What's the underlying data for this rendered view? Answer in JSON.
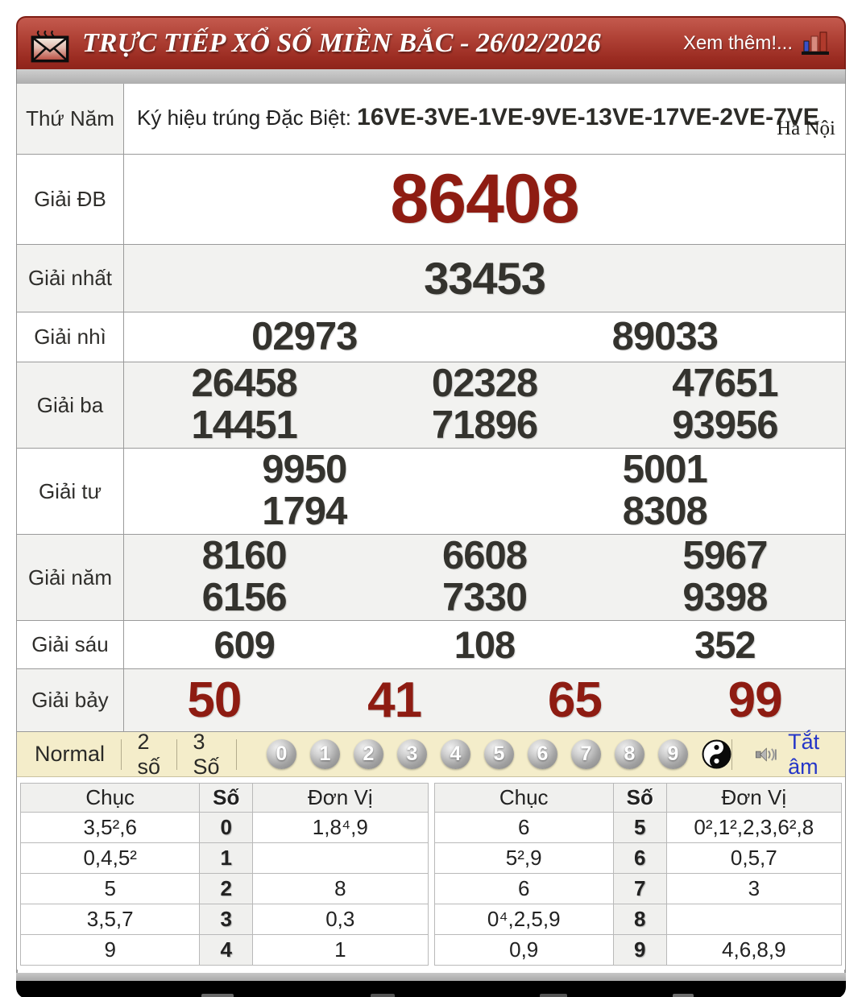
{
  "header": {
    "title": "TRỰC TIẾP XỔ SỐ MIỀN BẮC - 26/02/2026",
    "more_link": "Xem thêm!..."
  },
  "info": {
    "day": "Thứ Năm",
    "prefix": "Ký hiệu trúng Đặc Biệt: ",
    "code": "16VE-3VE-1VE-9VE-13VE-17VE-2VE-7VE",
    "region": "Hà Nội"
  },
  "prizes": {
    "rows": [
      {
        "label": "Giải ĐB",
        "style": "db",
        "shaded": false,
        "lines": [
          [
            "86408"
          ]
        ]
      },
      {
        "label": "Giải nhất",
        "style": "first",
        "shaded": true,
        "lines": [
          [
            "33453"
          ]
        ]
      },
      {
        "label": "Giải nhì",
        "style": "mid",
        "shaded": false,
        "lines": [
          [
            "02973",
            "89033"
          ]
        ]
      },
      {
        "label": "Giải ba",
        "style": "mid",
        "shaded": true,
        "lines": [
          [
            "26458",
            "02328",
            "47651"
          ],
          [
            "14451",
            "71896",
            "93956"
          ]
        ]
      },
      {
        "label": "Giải tư",
        "style": "mid",
        "shaded": false,
        "lines": [
          [
            "9950",
            "5001"
          ],
          [
            "1794",
            "8308"
          ]
        ]
      },
      {
        "label": "Giải năm",
        "style": "mid",
        "shaded": true,
        "lines": [
          [
            "8160",
            "6608",
            "5967"
          ],
          [
            "6156",
            "7330",
            "9398"
          ]
        ]
      },
      {
        "label": "Giải sáu",
        "style": "small",
        "shaded": false,
        "lines": [
          [
            "609",
            "108",
            "352"
          ]
        ]
      },
      {
        "label": "Giải bảy",
        "style": "seven",
        "shaded": true,
        "lines": [
          [
            "50",
            "41",
            "65",
            "99"
          ]
        ]
      }
    ]
  },
  "controls": {
    "modes": [
      "Normal",
      "2 số",
      "3 Số"
    ],
    "balls": [
      "0",
      "1",
      "2",
      "3",
      "4",
      "5",
      "6",
      "7",
      "8",
      "9"
    ],
    "mute_label": "Tắt âm"
  },
  "stats": {
    "headers": [
      "Chục",
      "Số",
      "Đơn Vị"
    ],
    "left_rows": [
      {
        "chuc": "3,5²,6",
        "so": "0",
        "donvi": "1,8⁴,9"
      },
      {
        "chuc": "0,4,5²",
        "so": "1",
        "donvi": ""
      },
      {
        "chuc": "5",
        "so": "2",
        "donvi": "8"
      },
      {
        "chuc": "3,5,7",
        "so": "3",
        "donvi": "0,3"
      },
      {
        "chuc": "9",
        "so": "4",
        "donvi": "1"
      }
    ],
    "right_rows": [
      {
        "chuc": "6",
        "so": "5",
        "donvi": "0²,1²,2,3,6²,8"
      },
      {
        "chuc": "5²,9",
        "so": "6",
        "donvi": "0,5,7"
      },
      {
        "chuc": "6",
        "so": "7",
        "donvi": "3"
      },
      {
        "chuc": "0⁴,2,5,9",
        "so": "8",
        "donvi": ""
      },
      {
        "chuc": "0,9",
        "so": "9",
        "donvi": "4,6,8,9"
      }
    ]
  },
  "colors": {
    "accent_red": "#8e1c12",
    "header_red": "#a5352b",
    "link_blue": "#2536c8",
    "bar_beige": "#f4edca"
  }
}
